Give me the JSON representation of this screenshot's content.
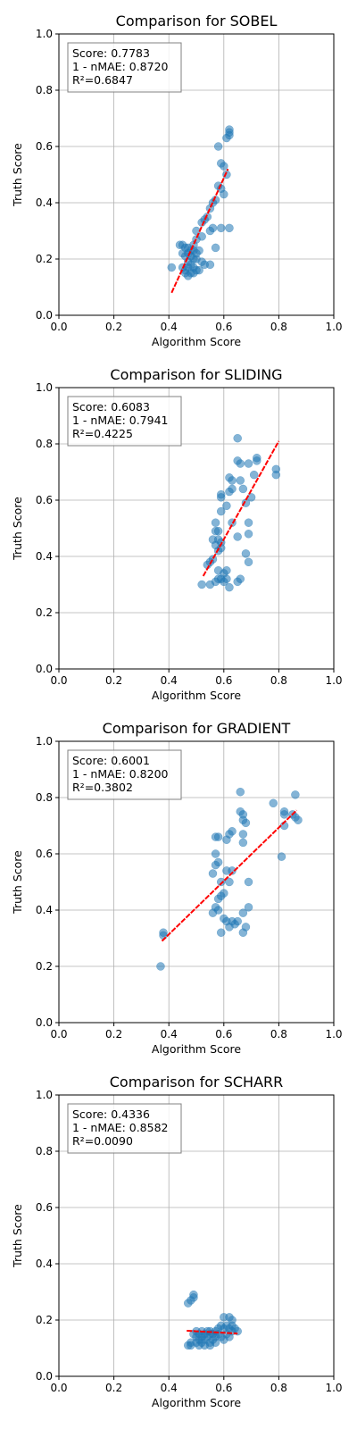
{
  "chart_data": [
    {
      "type": "scatter",
      "title": "Comparison for SOBEL",
      "xlabel": "Algorithm Score",
      "ylabel": "Truth Score",
      "xlim": [
        0,
        1
      ],
      "ylim": [
        0,
        1
      ],
      "grid": true,
      "ticks": [
        "0.0",
        "0.2",
        "0.4",
        "0.6",
        "0.8",
        "1.0"
      ],
      "stats": [
        "Score: 0.7783",
        "1 - nMAE: 0.8720",
        "R²=0.6847"
      ],
      "stats_placement": "top-left",
      "fit_line": {
        "x": [
          0.41,
          0.615
        ],
        "y": [
          0.08,
          0.52
        ]
      },
      "points": [
        [
          0.62,
          0.66
        ],
        [
          0.62,
          0.65
        ],
        [
          0.62,
          0.64
        ],
        [
          0.61,
          0.63
        ],
        [
          0.58,
          0.6
        ],
        [
          0.59,
          0.54
        ],
        [
          0.6,
          0.53
        ],
        [
          0.61,
          0.5
        ],
        [
          0.58,
          0.46
        ],
        [
          0.59,
          0.45
        ],
        [
          0.6,
          0.43
        ],
        [
          0.57,
          0.41
        ],
        [
          0.56,
          0.4
        ],
        [
          0.55,
          0.38
        ],
        [
          0.54,
          0.35
        ],
        [
          0.53,
          0.34
        ],
        [
          0.52,
          0.33
        ],
        [
          0.56,
          0.31
        ],
        [
          0.59,
          0.31
        ],
        [
          0.62,
          0.31
        ],
        [
          0.55,
          0.3
        ],
        [
          0.5,
          0.3
        ],
        [
          0.52,
          0.28
        ],
        [
          0.5,
          0.27
        ],
        [
          0.49,
          0.25
        ],
        [
          0.44,
          0.25
        ],
        [
          0.45,
          0.25
        ],
        [
          0.46,
          0.24
        ],
        [
          0.47,
          0.24
        ],
        [
          0.48,
          0.23
        ],
        [
          0.49,
          0.23
        ],
        [
          0.51,
          0.23
        ],
        [
          0.57,
          0.24
        ],
        [
          0.45,
          0.22
        ],
        [
          0.47,
          0.22
        ],
        [
          0.5,
          0.22
        ],
        [
          0.46,
          0.21
        ],
        [
          0.48,
          0.21
        ],
        [
          0.49,
          0.2
        ],
        [
          0.5,
          0.2
        ],
        [
          0.47,
          0.19
        ],
        [
          0.48,
          0.18
        ],
        [
          0.52,
          0.19
        ],
        [
          0.53,
          0.18
        ],
        [
          0.55,
          0.18
        ],
        [
          0.41,
          0.17
        ],
        [
          0.45,
          0.17
        ],
        [
          0.47,
          0.17
        ],
        [
          0.49,
          0.17
        ],
        [
          0.51,
          0.16
        ],
        [
          0.46,
          0.16
        ],
        [
          0.48,
          0.15
        ],
        [
          0.47,
          0.14
        ],
        [
          0.49,
          0.15
        ],
        [
          0.5,
          0.16
        ],
        [
          0.46,
          0.15
        ]
      ]
    },
    {
      "type": "scatter",
      "title": "Comparison for SLIDING",
      "xlabel": "Algorithm Score",
      "ylabel": "Truth Score",
      "xlim": [
        0,
        1
      ],
      "ylim": [
        0,
        1
      ],
      "grid": true,
      "ticks": [
        "0.0",
        "0.2",
        "0.4",
        "0.6",
        "0.8",
        "1.0"
      ],
      "stats": [
        "Score: 0.6083",
        "1 - nMAE: 0.7941",
        "R²=0.4225"
      ],
      "stats_placement": "top-left",
      "fit_line": {
        "x": [
          0.525,
          0.8
        ],
        "y": [
          0.33,
          0.81
        ]
      },
      "points": [
        [
          0.65,
          0.82
        ],
        [
          0.65,
          0.74
        ],
        [
          0.66,
          0.73
        ],
        [
          0.69,
          0.73
        ],
        [
          0.72,
          0.75
        ],
        [
          0.72,
          0.74
        ],
        [
          0.79,
          0.71
        ],
        [
          0.79,
          0.69
        ],
        [
          0.62,
          0.68
        ],
        [
          0.63,
          0.67
        ],
        [
          0.66,
          0.67
        ],
        [
          0.71,
          0.69
        ],
        [
          0.63,
          0.64
        ],
        [
          0.62,
          0.63
        ],
        [
          0.67,
          0.64
        ],
        [
          0.59,
          0.62
        ],
        [
          0.59,
          0.61
        ],
        [
          0.7,
          0.61
        ],
        [
          0.61,
          0.58
        ],
        [
          0.68,
          0.59
        ],
        [
          0.59,
          0.56
        ],
        [
          0.57,
          0.52
        ],
        [
          0.63,
          0.52
        ],
        [
          0.69,
          0.52
        ],
        [
          0.57,
          0.49
        ],
        [
          0.58,
          0.49
        ],
        [
          0.69,
          0.48
        ],
        [
          0.56,
          0.46
        ],
        [
          0.58,
          0.46
        ],
        [
          0.59,
          0.45
        ],
        [
          0.65,
          0.47
        ],
        [
          0.57,
          0.44
        ],
        [
          0.59,
          0.43
        ],
        [
          0.58,
          0.42
        ],
        [
          0.68,
          0.41
        ],
        [
          0.56,
          0.39
        ],
        [
          0.55,
          0.38
        ],
        [
          0.54,
          0.37
        ],
        [
          0.69,
          0.38
        ],
        [
          0.58,
          0.35
        ],
        [
          0.61,
          0.35
        ],
        [
          0.6,
          0.34
        ],
        [
          0.58,
          0.32
        ],
        [
          0.59,
          0.32
        ],
        [
          0.6,
          0.31
        ],
        [
          0.61,
          0.32
        ],
        [
          0.66,
          0.32
        ],
        [
          0.57,
          0.31
        ],
        [
          0.55,
          0.3
        ],
        [
          0.52,
          0.3
        ],
        [
          0.65,
          0.31
        ],
        [
          0.62,
          0.29
        ]
      ]
    },
    {
      "type": "scatter",
      "title": "Comparison for GRADIENT",
      "xlabel": "Algorithm Score",
      "ylabel": "Truth Score",
      "xlim": [
        0,
        1
      ],
      "ylim": [
        0,
        1
      ],
      "grid": true,
      "ticks": [
        "0.0",
        "0.2",
        "0.4",
        "0.6",
        "0.8",
        "1.0"
      ],
      "stats": [
        "Score: 0.6001",
        "1 - nMAE: 0.8200",
        "R²=0.3802"
      ],
      "stats_placement": "top-left",
      "fit_line": {
        "x": [
          0.375,
          0.865
        ],
        "y": [
          0.29,
          0.755
        ]
      },
      "points": [
        [
          0.66,
          0.82
        ],
        [
          0.86,
          0.81
        ],
        [
          0.78,
          0.78
        ],
        [
          0.66,
          0.75
        ],
        [
          0.67,
          0.74
        ],
        [
          0.82,
          0.75
        ],
        [
          0.82,
          0.74
        ],
        [
          0.85,
          0.74
        ],
        [
          0.86,
          0.73
        ],
        [
          0.87,
          0.72
        ],
        [
          0.67,
          0.72
        ],
        [
          0.68,
          0.71
        ],
        [
          0.82,
          0.7
        ],
        [
          0.63,
          0.68
        ],
        [
          0.62,
          0.67
        ],
        [
          0.67,
          0.67
        ],
        [
          0.57,
          0.66
        ],
        [
          0.58,
          0.66
        ],
        [
          0.61,
          0.65
        ],
        [
          0.67,
          0.64
        ],
        [
          0.57,
          0.6
        ],
        [
          0.81,
          0.59
        ],
        [
          0.58,
          0.57
        ],
        [
          0.57,
          0.56
        ],
        [
          0.61,
          0.54
        ],
        [
          0.63,
          0.54
        ],
        [
          0.56,
          0.53
        ],
        [
          0.59,
          0.5
        ],
        [
          0.62,
          0.5
        ],
        [
          0.69,
          0.5
        ],
        [
          0.6,
          0.46
        ],
        [
          0.59,
          0.45
        ],
        [
          0.58,
          0.44
        ],
        [
          0.57,
          0.41
        ],
        [
          0.69,
          0.41
        ],
        [
          0.58,
          0.4
        ],
        [
          0.56,
          0.39
        ],
        [
          0.67,
          0.39
        ],
        [
          0.6,
          0.37
        ],
        [
          0.61,
          0.36
        ],
        [
          0.63,
          0.36
        ],
        [
          0.64,
          0.35
        ],
        [
          0.65,
          0.36
        ],
        [
          0.62,
          0.34
        ],
        [
          0.68,
          0.34
        ],
        [
          0.67,
          0.32
        ],
        [
          0.59,
          0.32
        ],
        [
          0.38,
          0.32
        ],
        [
          0.38,
          0.31
        ],
        [
          0.37,
          0.2
        ]
      ]
    },
    {
      "type": "scatter",
      "title": "Comparison for SCHARR",
      "xlabel": "Algorithm Score",
      "ylabel": "Truth Score",
      "xlim": [
        0,
        1
      ],
      "ylim": [
        0,
        1
      ],
      "grid": true,
      "ticks": [
        "0.0",
        "0.2",
        "0.4",
        "0.6",
        "0.8",
        "1.0"
      ],
      "stats": [
        "Score: 0.4336",
        "1 - nMAE: 0.8582",
        "R²=0.0090"
      ],
      "stats_placement": "top-left",
      "fit_line": {
        "x": [
          0.465,
          0.65
        ],
        "y": [
          0.162,
          0.152
        ]
      },
      "points": [
        [
          0.49,
          0.29
        ],
        [
          0.49,
          0.28
        ],
        [
          0.48,
          0.27
        ],
        [
          0.47,
          0.26
        ],
        [
          0.6,
          0.21
        ],
        [
          0.62,
          0.21
        ],
        [
          0.63,
          0.2
        ],
        [
          0.59,
          0.18
        ],
        [
          0.61,
          0.18
        ],
        [
          0.63,
          0.18
        ],
        [
          0.58,
          0.17
        ],
        [
          0.6,
          0.17
        ],
        [
          0.62,
          0.17
        ],
        [
          0.64,
          0.17
        ],
        [
          0.5,
          0.16
        ],
        [
          0.52,
          0.16
        ],
        [
          0.54,
          0.16
        ],
        [
          0.55,
          0.16
        ],
        [
          0.57,
          0.16
        ],
        [
          0.63,
          0.16
        ],
        [
          0.65,
          0.16
        ],
        [
          0.49,
          0.15
        ],
        [
          0.51,
          0.15
        ],
        [
          0.53,
          0.15
        ],
        [
          0.55,
          0.15
        ],
        [
          0.56,
          0.15
        ],
        [
          0.58,
          0.15
        ],
        [
          0.61,
          0.15
        ],
        [
          0.5,
          0.14
        ],
        [
          0.52,
          0.14
        ],
        [
          0.54,
          0.14
        ],
        [
          0.57,
          0.14
        ],
        [
          0.59,
          0.14
        ],
        [
          0.62,
          0.14
        ],
        [
          0.51,
          0.13
        ],
        [
          0.53,
          0.13
        ],
        [
          0.56,
          0.13
        ],
        [
          0.6,
          0.13
        ],
        [
          0.48,
          0.12
        ],
        [
          0.5,
          0.12
        ],
        [
          0.52,
          0.12
        ],
        [
          0.55,
          0.12
        ],
        [
          0.57,
          0.12
        ],
        [
          0.47,
          0.11
        ],
        [
          0.48,
          0.11
        ],
        [
          0.51,
          0.11
        ],
        [
          0.53,
          0.11
        ],
        [
          0.55,
          0.11
        ]
      ]
    }
  ]
}
